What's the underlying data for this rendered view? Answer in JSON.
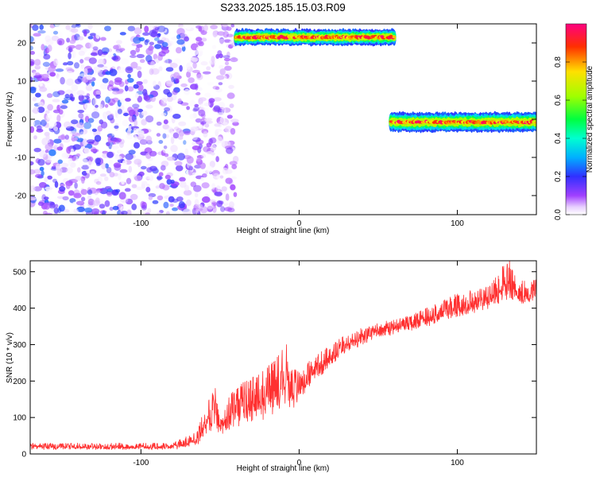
{
  "figure": {
    "title": "S233.2025.185.15.03.R09"
  },
  "chart_data": [
    {
      "type": "heatmap",
      "xlabel": "Height of straight line (km)",
      "ylabel": "Frequency (Hz)",
      "xlim": [
        -170,
        150
      ],
      "ylim": [
        -25,
        25
      ],
      "xticks": [
        -100,
        0,
        100
      ],
      "yticks": [
        -20,
        -10,
        0,
        10,
        20
      ],
      "grid": false,
      "colorbar": {
        "label": "Normalized spectral amplitude",
        "range": [
          0.0,
          1.0
        ],
        "ticks": [
          "0.0",
          "0.2",
          "0.4",
          "0.6",
          "0.8"
        ],
        "colormap": "rainbow (white-violet-blue-cyan-green-yellow-red-magenta)"
      },
      "features": [
        {
          "description": "scattered low-amplitude noise",
          "x_range": [
            -170,
            -70
          ],
          "y_range": [
            -25,
            25
          ],
          "amplitude_range": [
            0.0,
            0.25
          ]
        },
        {
          "description": "noise fading toward signal onset",
          "x_range": [
            -70,
            -40
          ],
          "y_range": [
            -25,
            25
          ],
          "amplitude_range": [
            0.0,
            0.15
          ]
        },
        {
          "description": "upper line segment",
          "x_range": [
            -40,
            60
          ],
          "frequency": [
            20.5,
            22.5
          ],
          "amplitude_range": [
            0.3,
            1.0
          ]
        },
        {
          "description": "lower line segment",
          "x_range": [
            58,
            150
          ],
          "frequency": [
            -2,
            0.5
          ],
          "amplitude_range": [
            0.3,
            1.0
          ]
        }
      ]
    },
    {
      "type": "line",
      "xlabel": "Height of straight line (km)",
      "ylabel": "SNR (10 * v/v)",
      "xlim": [
        -170,
        150
      ],
      "ylim": [
        0,
        530
      ],
      "xticks": [
        -100,
        0,
        100
      ],
      "yticks": [
        0,
        100,
        200,
        300,
        400,
        500
      ],
      "grid": false,
      "series": [
        {
          "color": "#ff3030",
          "x": [
            -170,
            -140,
            -110,
            -80,
            -65,
            -60,
            -55,
            -50,
            -45,
            -40,
            -35,
            -30,
            -25,
            -20,
            -15,
            -10,
            -5,
            0,
            5,
            10,
            20,
            30,
            40,
            50,
            60,
            70,
            80,
            90,
            100,
            110,
            120,
            130,
            140,
            150
          ],
          "low": [
            5,
            5,
            5,
            5,
            8,
            20,
            30,
            25,
            30,
            35,
            40,
            40,
            40,
            45,
            50,
            60,
            80,
            110,
            140,
            170,
            220,
            260,
            280,
            300,
            310,
            320,
            330,
            340,
            350,
            360,
            370,
            380,
            380,
            390
          ],
          "high": [
            30,
            30,
            30,
            30,
            60,
            120,
            170,
            130,
            160,
            180,
            200,
            210,
            220,
            240,
            260,
            300,
            240,
            230,
            250,
            270,
            300,
            330,
            350,
            360,
            370,
            380,
            400,
            420,
            440,
            450,
            460,
            530,
            480,
            480
          ],
          "peaks": [
            [
              -53,
              180
            ],
            [
              -17,
              250
            ],
            [
              -8,
              300
            ],
            [
              133,
              530
            ]
          ]
        }
      ]
    }
  ]
}
